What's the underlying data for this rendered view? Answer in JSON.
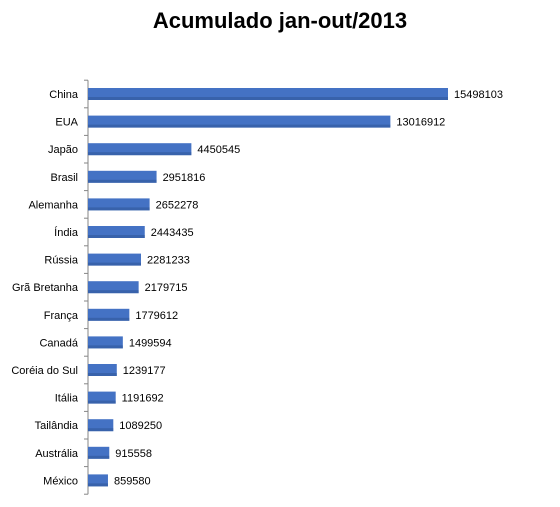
{
  "chart_data": {
    "type": "bar",
    "orientation": "horizontal",
    "title": "Acumulado jan-out/2013",
    "xlabel": "",
    "ylabel": "",
    "categories": [
      "China",
      "EUA",
      "Japão",
      "Brasil",
      "Alemanha",
      "Índia",
      "Rússia",
      "Grã Bretanha",
      "França",
      "Canadá",
      "Coréia do Sul",
      "Itália",
      "Tailândia",
      "Austrália",
      "México"
    ],
    "values": [
      15498103,
      13016912,
      4450545,
      2951816,
      2652278,
      2443435,
      2281233,
      2179715,
      1779612,
      1499594,
      1239177,
      1191692,
      1089250,
      915558,
      859580
    ],
    "data_labels": [
      "15498103",
      "13016912",
      "4450545",
      "2951816",
      "2652278",
      "2443435",
      "2281233",
      "2179715",
      "1779612",
      "1499594",
      "1239177",
      "1191692",
      "1089250",
      "915558",
      "859580"
    ],
    "xlim": [
      0,
      15498103
    ],
    "grid": false,
    "legend": "none",
    "bar_color": "#4472C4"
  }
}
